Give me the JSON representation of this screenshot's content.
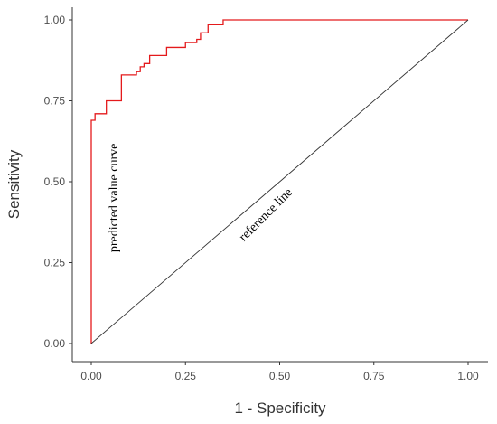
{
  "chart_data": {
    "type": "line",
    "title": "",
    "xlabel": "1 - Specificity",
    "ylabel": "Sensitivity",
    "xlim": [
      0,
      1
    ],
    "ylim": [
      0,
      1
    ],
    "x_ticks": [
      "0.00",
      "0.25",
      "0.50",
      "0.75",
      "1.00"
    ],
    "y_ticks": [
      "0.00",
      "0.25",
      "0.50",
      "0.75",
      "1.00"
    ],
    "grid": false,
    "legend": "none",
    "series": [
      {
        "color": "#e41a1c",
        "x": [
          0,
          0,
          0.01,
          0.01,
          0.04,
          0.04,
          0.08,
          0.08,
          0.12,
          0.12,
          0.13,
          0.13,
          0.14,
          0.14,
          0.155,
          0.155,
          0.2,
          0.2,
          0.25,
          0.25,
          0.28,
          0.28,
          0.29,
          0.29,
          0.31,
          0.31,
          0.35,
          0.35,
          1.0
        ],
        "y": [
          0,
          0.69,
          0.69,
          0.71,
          0.71,
          0.75,
          0.75,
          0.83,
          0.83,
          0.84,
          0.84,
          0.855,
          0.855,
          0.865,
          0.865,
          0.89,
          0.89,
          0.915,
          0.915,
          0.93,
          0.93,
          0.94,
          0.94,
          0.96,
          0.96,
          0.985,
          0.985,
          1.0,
          1.0
        ]
      },
      {
        "color": "#333333",
        "x": [
          0,
          1
        ],
        "y": [
          0,
          1
        ]
      }
    ],
    "annotations": [
      {
        "text": "predicted value curve",
        "x": 0.07,
        "y": 0.45,
        "rotation": -90
      },
      {
        "text": "reference line",
        "x": 0.47,
        "y": 0.39,
        "rotation": -45
      }
    ]
  }
}
